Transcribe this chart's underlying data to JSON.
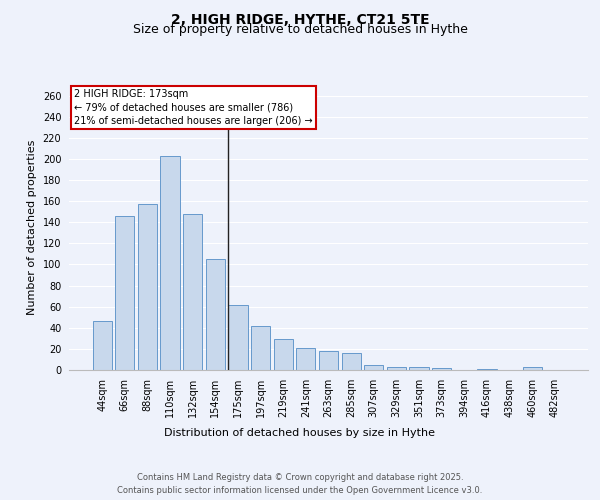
{
  "title": "2, HIGH RIDGE, HYTHE, CT21 5TE",
  "subtitle": "Size of property relative to detached houses in Hythe",
  "xlabel": "Distribution of detached houses by size in Hythe",
  "ylabel": "Number of detached properties",
  "bar_labels": [
    "44sqm",
    "66sqm",
    "88sqm",
    "110sqm",
    "132sqm",
    "154sqm",
    "175sqm",
    "197sqm",
    "219sqm",
    "241sqm",
    "263sqm",
    "285sqm",
    "307sqm",
    "329sqm",
    "351sqm",
    "373sqm",
    "394sqm",
    "416sqm",
    "438sqm",
    "460sqm",
    "482sqm"
  ],
  "bar_values": [
    46,
    146,
    157,
    203,
    148,
    105,
    62,
    42,
    29,
    21,
    18,
    16,
    5,
    3,
    3,
    2,
    0,
    1,
    0,
    3,
    0
  ],
  "bar_color": "#c8d8ec",
  "bar_edge_color": "#6699cc",
  "vline_index": 6,
  "vline_color": "#222222",
  "ylim": [
    0,
    270
  ],
  "yticks": [
    0,
    20,
    40,
    60,
    80,
    100,
    120,
    140,
    160,
    180,
    200,
    220,
    240,
    260
  ],
  "annotation_title": "2 HIGH RIDGE: 173sqm",
  "annotation_line1": "← 79% of detached houses are smaller (786)",
  "annotation_line2": "21% of semi-detached houses are larger (206) →",
  "annotation_box_color": "#ffffff",
  "annotation_box_edge": "#cc0000",
  "footer_line1": "Contains HM Land Registry data © Crown copyright and database right 2025.",
  "footer_line2": "Contains public sector information licensed under the Open Government Licence v3.0.",
  "background_color": "#eef2fb",
  "grid_color": "#ffffff",
  "title_fontsize": 10,
  "subtitle_fontsize": 9,
  "axis_label_fontsize": 8,
  "tick_fontsize": 7,
  "footer_fontsize": 6
}
